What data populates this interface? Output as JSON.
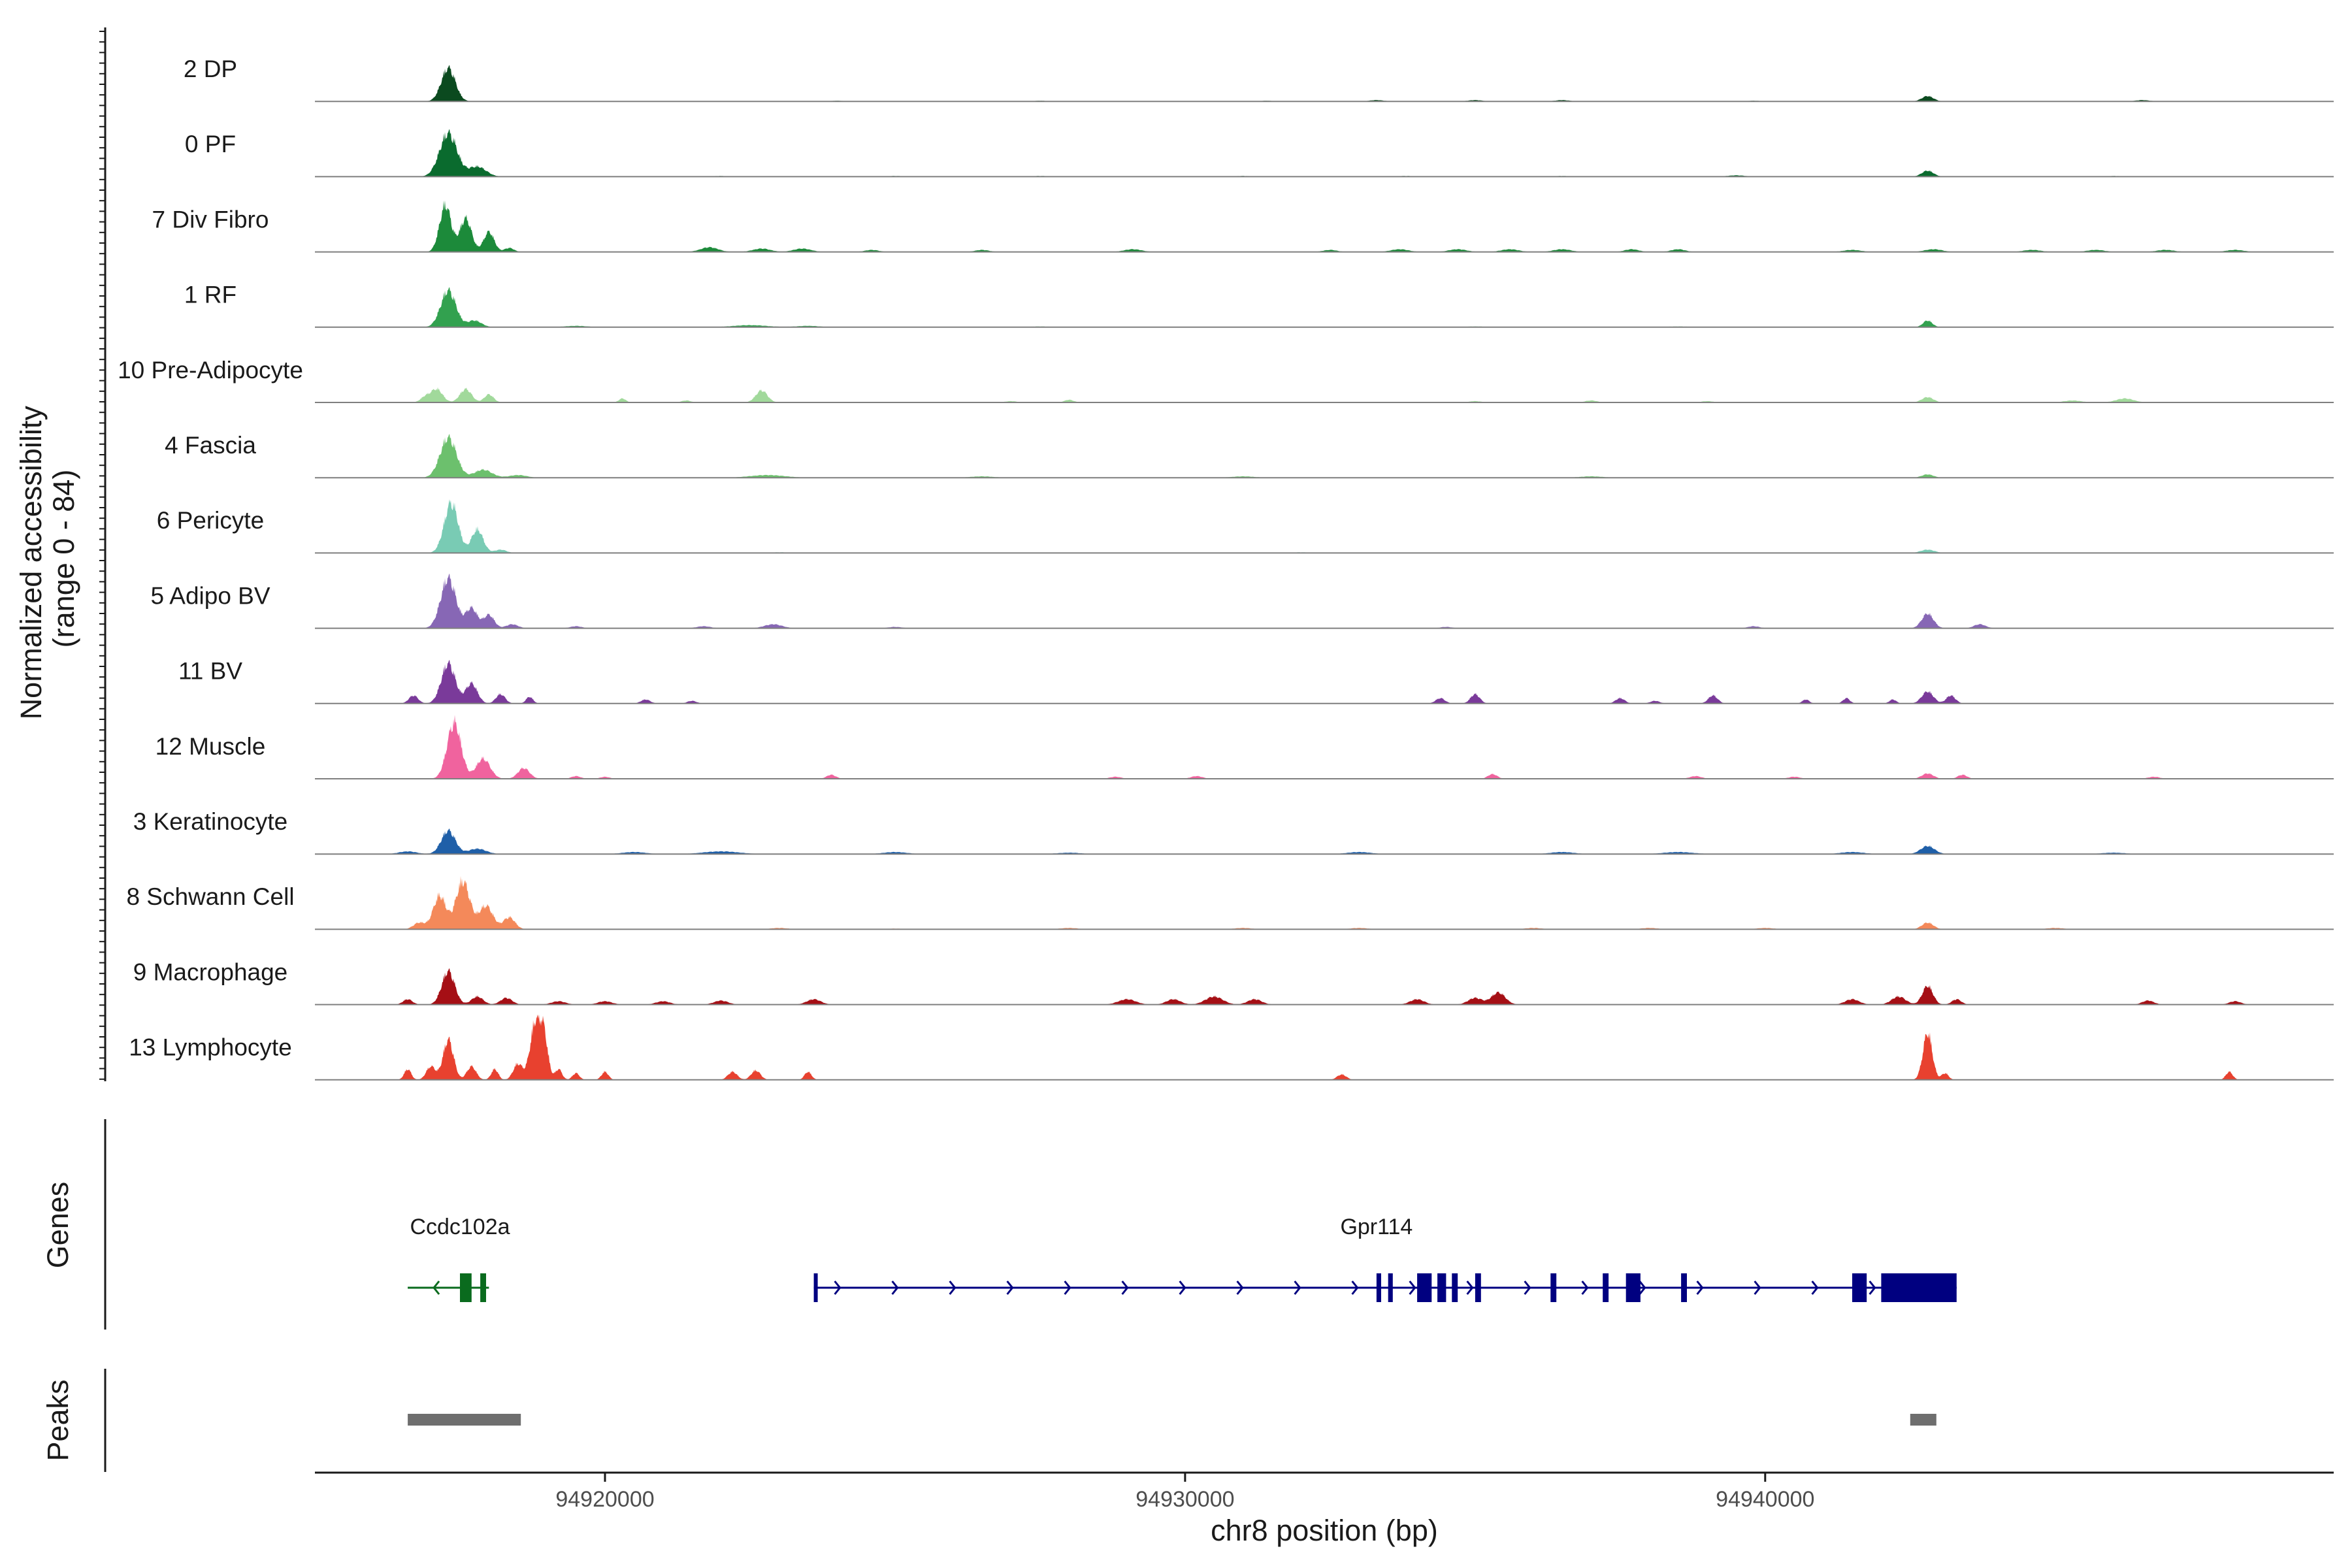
{
  "chart_data": {
    "type": "area",
    "title": "",
    "xlabel": "chr8 position (bp)",
    "ylabel": "Normalized accessibility\n(range 0 - 84)",
    "xlim": [
      94915000,
      94949800
    ],
    "ylim": [
      0,
      84
    ],
    "x_ticks": [
      94920000,
      94930000,
      94940000
    ],
    "x_tick_labels": [
      "94920000",
      "94930000",
      "94940000"
    ],
    "panels": {
      "genes": "Genes",
      "peaks": "Peaks"
    },
    "series": [
      {
        "name": "2 DP",
        "color": "#0b4a1f",
        "peaks": [
          [
            94917300,
            50,
            120
          ],
          [
            94942800,
            8,
            100
          ],
          [
            94924000,
            1,
            100
          ],
          [
            94931400,
            1,
            100
          ],
          [
            94933300,
            2,
            120
          ],
          [
            94935000,
            2,
            120
          ],
          [
            94936500,
            2,
            120
          ],
          [
            94939800,
            1,
            100
          ],
          [
            94946500,
            2,
            120
          ],
          [
            94927500,
            1,
            100
          ]
        ]
      },
      {
        "name": "0 PF",
        "color": "#0a6b2e",
        "peaks": [
          [
            94917300,
            65,
            150
          ],
          [
            94917800,
            15,
            150
          ],
          [
            94942800,
            9,
            100
          ],
          [
            94922000,
            1,
            150
          ],
          [
            94925000,
            1,
            150
          ],
          [
            94927500,
            1,
            150
          ],
          [
            94931000,
            1,
            150
          ],
          [
            94933800,
            1,
            150
          ],
          [
            94936500,
            1,
            150
          ],
          [
            94939500,
            2,
            150
          ],
          [
            94946000,
            1,
            150
          ]
        ]
      },
      {
        "name": "7 Div Fibro",
        "color": "#1c8a3a",
        "peaks": [
          [
            94917250,
            70,
            100
          ],
          [
            94917600,
            50,
            100
          ],
          [
            94918000,
            30,
            90
          ],
          [
            94918350,
            6,
            80
          ],
          [
            94921800,
            7,
            150
          ],
          [
            94922700,
            5,
            150
          ],
          [
            94923400,
            5,
            150
          ],
          [
            94924600,
            3,
            120
          ],
          [
            94926500,
            3,
            120
          ],
          [
            94929100,
            4,
            150
          ],
          [
            94932500,
            3,
            120
          ],
          [
            94933700,
            4,
            150
          ],
          [
            94934700,
            4,
            150
          ],
          [
            94935600,
            4,
            150
          ],
          [
            94936500,
            4,
            150
          ],
          [
            94937700,
            4,
            120
          ],
          [
            94938500,
            4,
            120
          ],
          [
            94941500,
            3,
            150
          ],
          [
            94942900,
            4,
            150
          ],
          [
            94944600,
            3,
            150
          ],
          [
            94945700,
            3,
            150
          ],
          [
            94946900,
            3,
            150
          ],
          [
            94948100,
            3,
            150
          ]
        ]
      },
      {
        "name": "1 RF",
        "color": "#32a14f",
        "peaks": [
          [
            94917300,
            55,
            130
          ],
          [
            94917750,
            10,
            120
          ],
          [
            94942800,
            10,
            80
          ],
          [
            94919500,
            2,
            200
          ],
          [
            94922500,
            3,
            300
          ],
          [
            94923500,
            2,
            200
          ],
          [
            94927500,
            1,
            200
          ],
          [
            94935000,
            1,
            200
          ],
          [
            94938500,
            1,
            200
          ]
        ]
      },
      {
        "name": "10 Pre-Adipocyte",
        "color": "#a1d99b",
        "peaks": [
          [
            94917100,
            20,
            100
          ],
          [
            94917600,
            20,
            100
          ],
          [
            94916900,
            8,
            80
          ],
          [
            94918000,
            12,
            80
          ],
          [
            94922700,
            18,
            100
          ],
          [
            94920300,
            6,
            60
          ],
          [
            94921400,
            3,
            80
          ],
          [
            94927000,
            2,
            100
          ],
          [
            94928000,
            4,
            80
          ],
          [
            94935000,
            2,
            100
          ],
          [
            94937000,
            3,
            100
          ],
          [
            94939000,
            2,
            100
          ],
          [
            94942800,
            8,
            100
          ],
          [
            94945300,
            3,
            150
          ],
          [
            94946200,
            6,
            150
          ]
        ]
      },
      {
        "name": "4 Fascia",
        "color": "#6cc06d",
        "peaks": [
          [
            94917300,
            60,
            140
          ],
          [
            94917900,
            12,
            150
          ],
          [
            94918500,
            4,
            150
          ],
          [
            94922800,
            4,
            300
          ],
          [
            94926500,
            2,
            200
          ],
          [
            94931000,
            2,
            200
          ],
          [
            94937000,
            2,
            200
          ],
          [
            94942800,
            5,
            100
          ]
        ]
      },
      {
        "name": "6 Pericyte",
        "color": "#79cbb4",
        "peaks": [
          [
            94917350,
            75,
            120
          ],
          [
            94917800,
            35,
            100
          ],
          [
            94918200,
            5,
            100
          ],
          [
            94923000,
            1,
            200
          ],
          [
            94932000,
            1,
            200
          ],
          [
            94942800,
            5,
            120
          ]
        ]
      },
      {
        "name": "5 Adipo BV",
        "color": "#8767b5",
        "peaks": [
          [
            94917300,
            75,
            130
          ],
          [
            94917700,
            30,
            100
          ],
          [
            94918000,
            20,
            90
          ],
          [
            94918400,
            6,
            100
          ],
          [
            94919500,
            3,
            100
          ],
          [
            94921700,
            3,
            120
          ],
          [
            94922900,
            6,
            150
          ],
          [
            94925000,
            2,
            120
          ],
          [
            94934500,
            2,
            100
          ],
          [
            94939800,
            3,
            100
          ],
          [
            94942800,
            22,
            100
          ],
          [
            94943700,
            6,
            100
          ]
        ]
      },
      {
        "name": "11 BV",
        "color": "#7a3a9a",
        "peaks": [
          [
            94917300,
            60,
            120
          ],
          [
            94917700,
            30,
            100
          ],
          [
            94918200,
            14,
            80
          ],
          [
            94918700,
            10,
            60
          ],
          [
            94916700,
            12,
            80
          ],
          [
            94920700,
            6,
            80
          ],
          [
            94921500,
            4,
            80
          ],
          [
            94934400,
            8,
            80
          ],
          [
            94935000,
            14,
            80
          ],
          [
            94937500,
            8,
            80
          ],
          [
            94938100,
            4,
            80
          ],
          [
            94939100,
            12,
            80
          ],
          [
            94940700,
            6,
            60
          ],
          [
            94941400,
            8,
            60
          ],
          [
            94942200,
            6,
            60
          ],
          [
            94942800,
            18,
            100
          ],
          [
            94943200,
            12,
            80
          ]
        ]
      },
      {
        "name": "12 Muscle",
        "color": "#f0639e",
        "peaks": [
          [
            94917400,
            84,
            120
          ],
          [
            94917900,
            30,
            120
          ],
          [
            94918600,
            16,
            100
          ],
          [
            94919500,
            4,
            80
          ],
          [
            94920000,
            3,
            80
          ],
          [
            94923900,
            6,
            80
          ],
          [
            94928800,
            3,
            100
          ],
          [
            94930200,
            4,
            100
          ],
          [
            94935300,
            7,
            80
          ],
          [
            94938800,
            4,
            100
          ],
          [
            94940500,
            3,
            100
          ],
          [
            94942800,
            8,
            100
          ],
          [
            94943400,
            6,
            80
          ],
          [
            94946700,
            3,
            100
          ]
        ]
      },
      {
        "name": "3 Keratinocyte",
        "color": "#1f5fa8",
        "peaks": [
          [
            94917300,
            35,
            120
          ],
          [
            94917800,
            8,
            150
          ],
          [
            94916600,
            4,
            150
          ],
          [
            94920500,
            3,
            200
          ],
          [
            94922000,
            4,
            300
          ],
          [
            94925000,
            3,
            200
          ],
          [
            94928000,
            2,
            200
          ],
          [
            94933000,
            3,
            200
          ],
          [
            94936500,
            3,
            200
          ],
          [
            94938500,
            3,
            250
          ],
          [
            94941500,
            3,
            200
          ],
          [
            94942800,
            12,
            120
          ],
          [
            94946000,
            2,
            200
          ]
        ]
      },
      {
        "name": "8 Schwann Cell",
        "color": "#f4895a",
        "peaks": [
          [
            94917150,
            50,
            110
          ],
          [
            94917550,
            72,
            120
          ],
          [
            94917950,
            35,
            120
          ],
          [
            94918350,
            18,
            100
          ],
          [
            94916800,
            10,
            100
          ],
          [
            94923000,
            2,
            150
          ],
          [
            94925000,
            1,
            150
          ],
          [
            94928000,
            2,
            150
          ],
          [
            94931000,
            2,
            150
          ],
          [
            94933000,
            2,
            150
          ],
          [
            94936000,
            2,
            150
          ],
          [
            94938000,
            2,
            150
          ],
          [
            94940000,
            2,
            150
          ],
          [
            94942800,
            10,
            100
          ],
          [
            94945000,
            2,
            150
          ]
        ]
      },
      {
        "name": "9 Macrophage",
        "color": "#a50f15",
        "peaks": [
          [
            94917300,
            50,
            110
          ],
          [
            94917800,
            12,
            100
          ],
          [
            94918300,
            10,
            100
          ],
          [
            94916600,
            8,
            80
          ],
          [
            94919200,
            5,
            120
          ],
          [
            94920000,
            5,
            120
          ],
          [
            94921000,
            5,
            120
          ],
          [
            94922000,
            6,
            120
          ],
          [
            94923600,
            8,
            120
          ],
          [
            94929000,
            8,
            150
          ],
          [
            94929800,
            8,
            120
          ],
          [
            94930500,
            12,
            150
          ],
          [
            94931200,
            8,
            120
          ],
          [
            94934000,
            8,
            120
          ],
          [
            94935000,
            10,
            120
          ],
          [
            94935400,
            18,
            120
          ],
          [
            94941500,
            8,
            120
          ],
          [
            94942300,
            12,
            120
          ],
          [
            94942800,
            28,
            90
          ],
          [
            94943300,
            8,
            80
          ],
          [
            94946600,
            6,
            100
          ],
          [
            94948100,
            5,
            100
          ]
        ]
      },
      {
        "name": "13 Lymphocyte",
        "color": "#e8412f",
        "peaks": [
          [
            94916600,
            16,
            60
          ],
          [
            94917000,
            20,
            80
          ],
          [
            94917300,
            60,
            90
          ],
          [
            94917700,
            20,
            80
          ],
          [
            94918100,
            16,
            60
          ],
          [
            94918500,
            24,
            80
          ],
          [
            94918800,
            84,
            90
          ],
          [
            94918950,
            60,
            70
          ],
          [
            94919200,
            16,
            60
          ],
          [
            94919500,
            10,
            60
          ],
          [
            94920000,
            12,
            60
          ],
          [
            94922200,
            12,
            80
          ],
          [
            94922600,
            14,
            80
          ],
          [
            94923500,
            12,
            60
          ],
          [
            94932700,
            8,
            80
          ],
          [
            94942800,
            70,
            80
          ],
          [
            94943100,
            10,
            60
          ],
          [
            94948000,
            12,
            60
          ]
        ]
      }
    ],
    "genes": [
      {
        "name": "Ccdc102a",
        "color": "#0a6b1e",
        "strand": "-",
        "start": 94916600,
        "end": 94918000,
        "exons": [
          [
            94917500,
            94917700
          ],
          [
            94917850,
            94917950
          ]
        ]
      },
      {
        "name": "Gpr114",
        "color": "#000080",
        "strand": "+",
        "start": 94923600,
        "end": 94943300,
        "exons": [
          [
            94923600,
            94923650
          ],
          [
            94933300,
            94933380
          ],
          [
            94933500,
            94933580
          ],
          [
            94934000,
            94934250
          ],
          [
            94934350,
            94934500
          ],
          [
            94934600,
            94934700
          ],
          [
            94935000,
            94935100
          ],
          [
            94936300,
            94936400
          ],
          [
            94937200,
            94937300
          ],
          [
            94937600,
            94937850
          ],
          [
            94938550,
            94938650
          ],
          [
            94941500,
            94941750
          ],
          [
            94942000,
            94943300
          ]
        ]
      }
    ],
    "peak_regions": [
      [
        94916600,
        94918550
      ],
      [
        94942500,
        94942950
      ]
    ],
    "grid": false,
    "legend": "none"
  }
}
